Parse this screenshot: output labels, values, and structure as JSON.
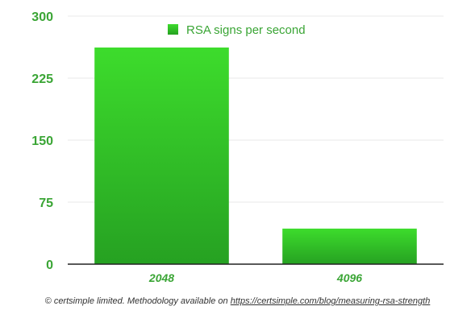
{
  "chart_data": {
    "type": "bar",
    "categories": [
      "2048",
      "4096"
    ],
    "series": [
      {
        "name": "RSA signs per second",
        "values": [
          262,
          43
        ]
      }
    ],
    "ylim": [
      0,
      300
    ],
    "yticks": [
      "0",
      "75",
      "150",
      "225",
      "300"
    ],
    "grid": true,
    "legend_placement": "top-center"
  },
  "colors": {
    "bar_top": "#3ddc2c",
    "bar_bottom": "#26a122",
    "label": "#3aa535",
    "grid": "#e8e8e8",
    "axis": "#222222"
  },
  "footer": {
    "text": "© certsimple limited. Methodology available on ",
    "link": "https://certsimple.com/blog/measuring-rsa-strength"
  }
}
